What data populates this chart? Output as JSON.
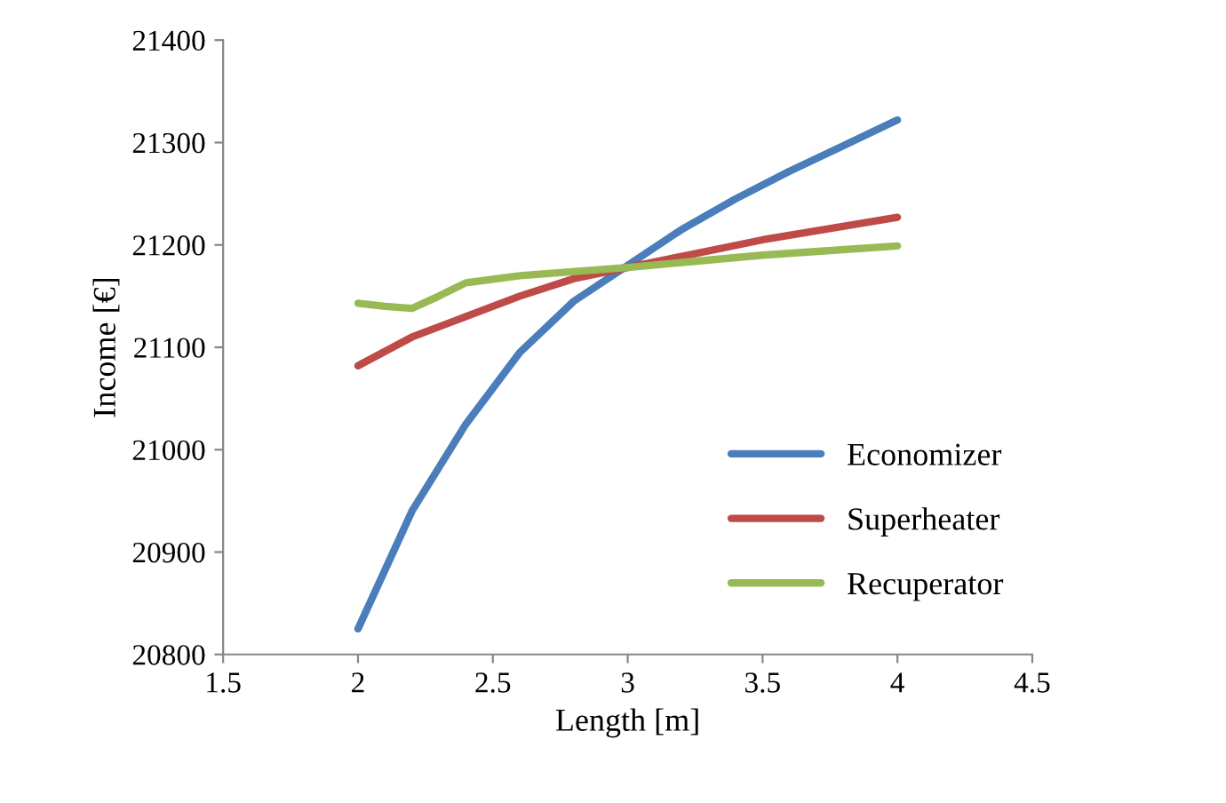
{
  "chart_data": {
    "type": "line",
    "xlabel": "Length [m]",
    "ylabel": "Income [€]",
    "xlim": [
      1.5,
      4.5
    ],
    "xticks": [
      1.5,
      2,
      2.5,
      3,
      3.5,
      4,
      4.5
    ],
    "ylim": [
      20800,
      21400
    ],
    "yticks": [
      20800,
      20900,
      21000,
      21100,
      21200,
      21300,
      21400
    ],
    "grid": false,
    "legend": "bottom right",
    "marker": "none",
    "line_style": "solid",
    "series": [
      {
        "name": "Economizer",
        "color": "#4a7ebb",
        "x": [
          2,
          2.2,
          2.4,
          2.6,
          2.8,
          3,
          3.2,
          3.4,
          3.6,
          3.8,
          4
        ],
        "values": [
          20825,
          20940,
          21025,
          21095,
          21145,
          21180,
          21215,
          21245,
          21272,
          21297,
          21322
        ]
      },
      {
        "name": "Superheater",
        "color": "#be4b48",
        "x": [
          2,
          2.2,
          2.4,
          2.6,
          2.8,
          3,
          3.5,
          4
        ],
        "values": [
          21082,
          21110,
          21130,
          21150,
          21167,
          21178,
          21205,
          21227
        ]
      },
      {
        "name": "Recuperator",
        "color": "#98b954",
        "x": [
          2,
          2.1,
          2.2,
          2.3,
          2.4,
          2.6,
          3,
          3.5,
          4
        ],
        "values": [
          21143,
          21140,
          21138,
          21150,
          21163,
          21170,
          21178,
          21190,
          21199
        ]
      }
    ]
  }
}
